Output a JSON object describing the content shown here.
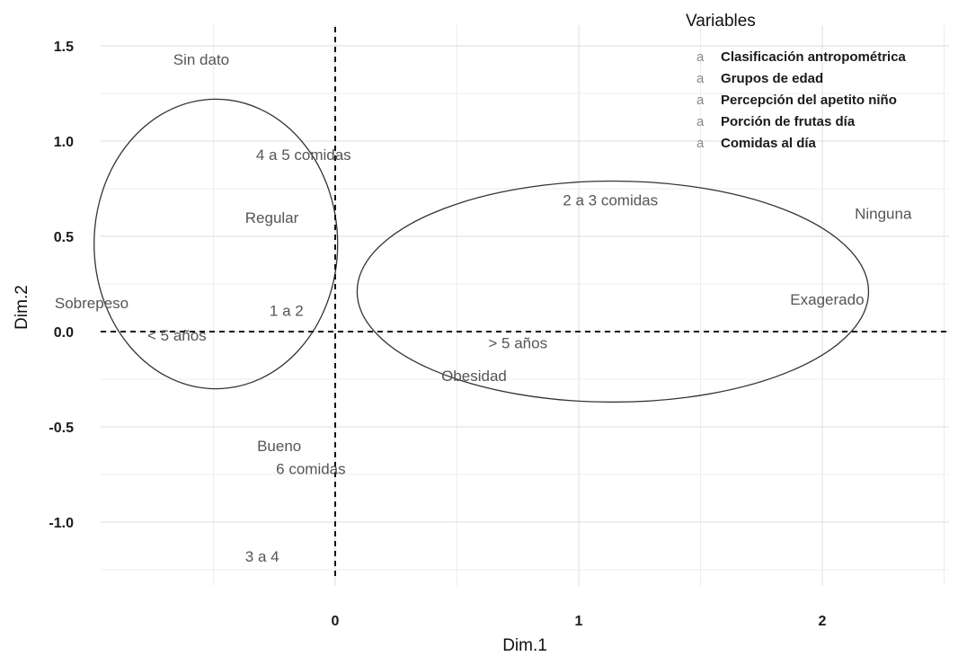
{
  "chart_data": {
    "type": "scatter",
    "xlabel": "Dim.1",
    "ylabel": "Dim.2",
    "xlim": [
      -1.35,
      2.55
    ],
    "ylim": [
      -1.25,
      1.6
    ],
    "x_ticks": [
      0,
      1,
      2
    ],
    "y_ticks": [
      1.5,
      1.0,
      0.5,
      0.0,
      -0.5,
      -1.0
    ],
    "grid": true,
    "reference_lines": {
      "x": 0,
      "y": 0,
      "style": "dashed"
    },
    "legend": {
      "title": "Variables",
      "position": "top-right",
      "key_symbol": "a",
      "entries": [
        "Clasificación antropométrica",
        "Grupos de edad",
        "Percepción del apetito niño",
        "Porción de frutas día",
        "Comidas al día"
      ]
    },
    "points": [
      {
        "label": "Sin dato",
        "x": -0.55,
        "y": 1.43
      },
      {
        "label": "4 a 5 comidas",
        "x": -0.13,
        "y": 0.93
      },
      {
        "label": "Regular",
        "x": -0.26,
        "y": 0.6
      },
      {
        "label": "Sobrepeso",
        "x": -1.0,
        "y": 0.15
      },
      {
        "label": "1 a 2",
        "x": -0.2,
        "y": 0.11
      },
      {
        "label": "< 5 años",
        "x": -0.65,
        "y": -0.02
      },
      {
        "label": "2 a 3 comidas",
        "x": 1.13,
        "y": 0.69
      },
      {
        "label": "Ninguna",
        "x": 2.25,
        "y": 0.62
      },
      {
        "label": "Exagerado",
        "x": 2.02,
        "y": 0.17
      },
      {
        "label": "> 5 años",
        "x": 0.75,
        "y": -0.06
      },
      {
        "label": "Obesidad",
        "x": 0.57,
        "y": -0.23
      },
      {
        "label": "Bueno",
        "x": -0.23,
        "y": -0.6
      },
      {
        "label": "6 comidas",
        "x": -0.1,
        "y": -0.72
      },
      {
        "label": "3 a 4",
        "x": -0.3,
        "y": -1.18
      }
    ],
    "ellipses": [
      {
        "cx": -0.49,
        "cy": 0.46,
        "rx": 0.5,
        "ry": 0.76
      },
      {
        "cx": 1.14,
        "cy": 0.21,
        "rx": 1.05,
        "ry": 0.58
      }
    ],
    "colors": {
      "grid": "#dcdcdc",
      "labels": "#555555",
      "reference": "#111111",
      "ellipse": "#333333"
    }
  }
}
